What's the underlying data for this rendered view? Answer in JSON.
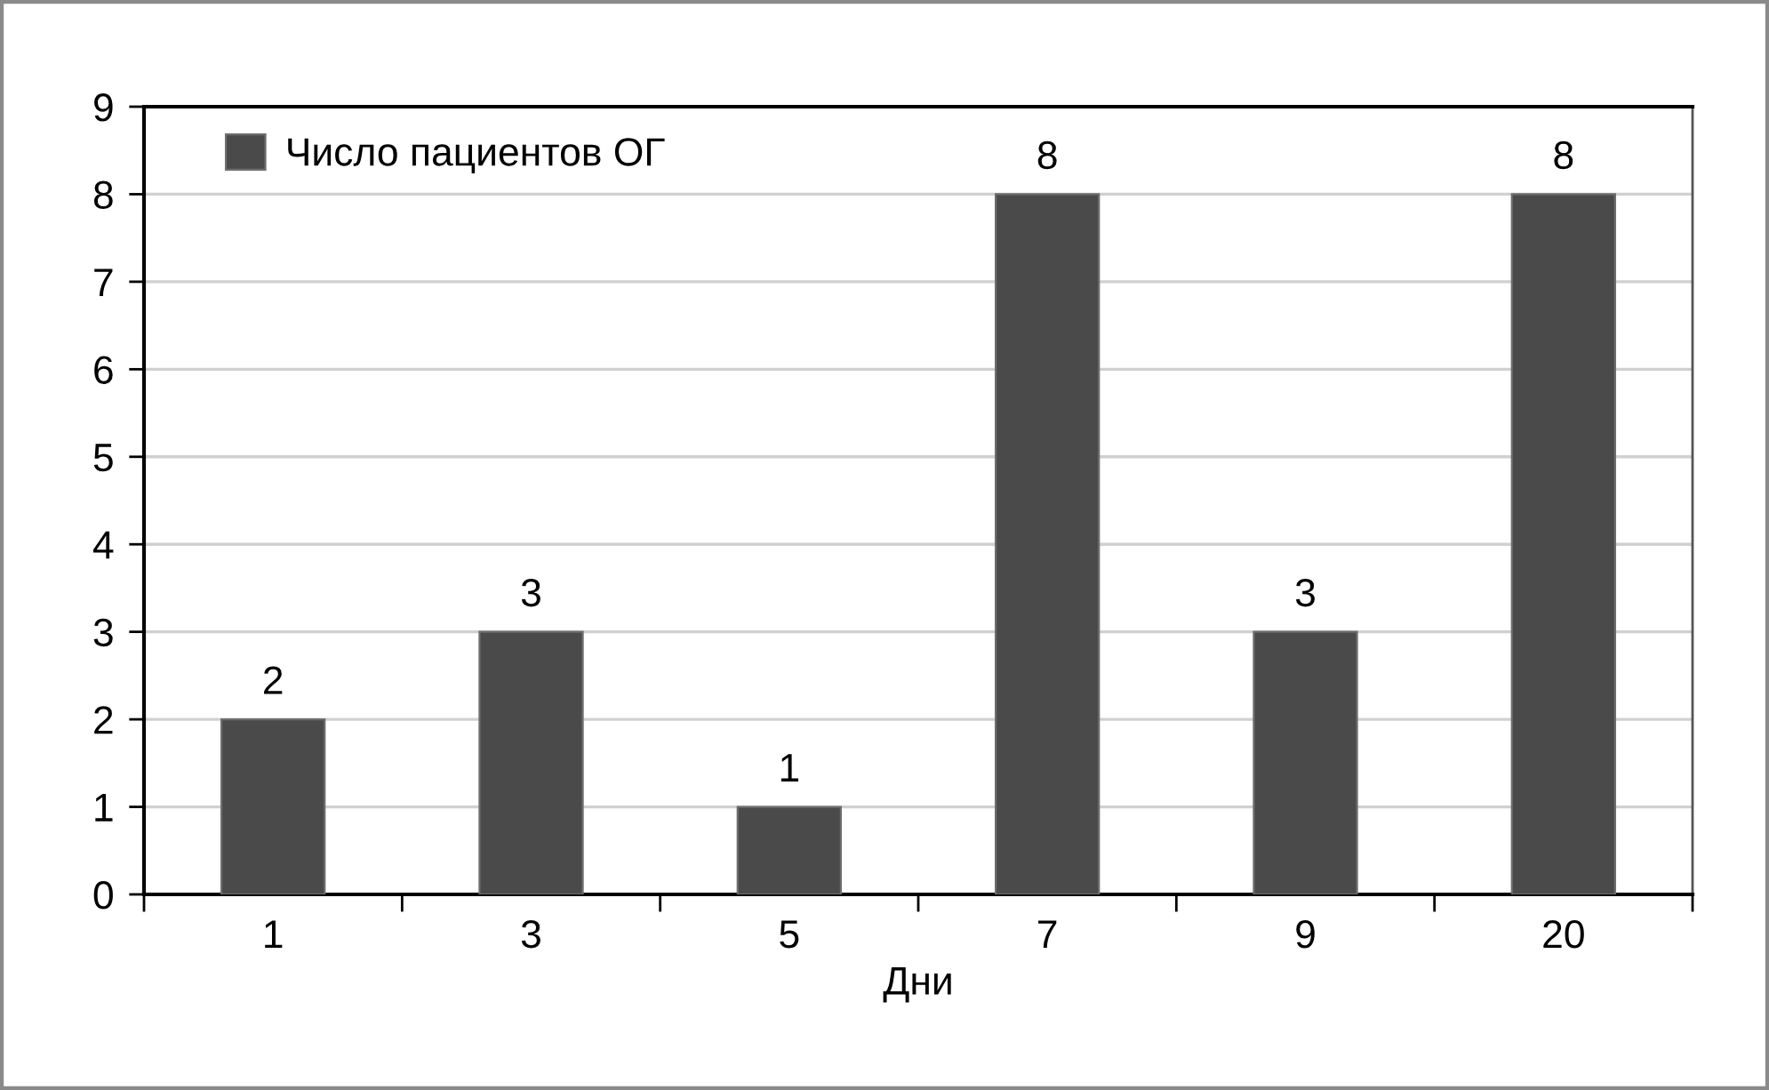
{
  "chart_data": {
    "type": "bar",
    "xlabel": "Дни",
    "categories": [
      "1",
      "3",
      "5",
      "7",
      "9",
      "20"
    ],
    "series": [
      {
        "name": "Число пациентов ОГ",
        "color": "#4a4a4a",
        "values": [
          2,
          3,
          1,
          8,
          3,
          8
        ]
      }
    ],
    "ylim": [
      0,
      9
    ],
    "yticks": [
      0,
      1,
      2,
      3,
      4,
      5,
      6,
      7,
      8,
      9
    ],
    "grid": "y",
    "legend": "top left",
    "data_labels": true
  }
}
